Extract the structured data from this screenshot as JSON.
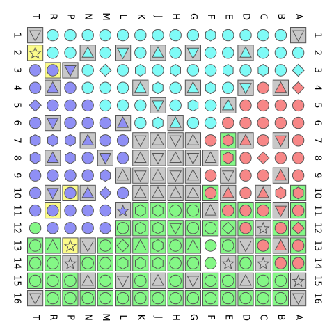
{
  "board": {
    "columns": [
      "T",
      "R",
      "P",
      "N",
      "M",
      "L",
      "K",
      "J",
      "H",
      "G",
      "F",
      "E",
      "D",
      "C",
      "B",
      "A"
    ],
    "rows": [
      "1",
      "2",
      "3",
      "4",
      "5",
      "6",
      "7",
      "8",
      "9",
      "10",
      "11",
      "12",
      "13",
      "14",
      "15",
      "16"
    ],
    "legend": {
      "background": {
        ".": "none",
        "y": "yellow",
        "g": "gray",
        "r": "green"
      },
      "color": {
        "c": "cyan",
        "b": "blue",
        "r": "red",
        "g": "green"
      },
      "shape": {
        "c": "circle",
        "x": "hexagon",
        "d": "diamond",
        "t": "triangle-up",
        "v": "triangle-down",
        "s": "star",
        "n": "none"
      }
    },
    "colors": {
      "cyan": "#7ffbf7",
      "blue": "#8f8ff5",
      "red": "#f78787",
      "green": "#84f786",
      "cell_gray": "#c8c8c8",
      "cell_yellow": "#fbfb8a",
      "cell_green": "#84f786",
      "outline": "#555555"
    },
    "grid": [
      [
        "gnv",
        ".cc",
        ".cc",
        ".cc",
        ".cc",
        ".cc",
        ".cc",
        ".cc",
        ".cc",
        ".cc",
        ".cx",
        ".cc",
        ".cc",
        ".cc",
        ".cc",
        "gnv"
      ],
      [
        "yns",
        ".cc",
        ".cc",
        "gct",
        ".cc",
        "gcv",
        ".cc",
        "gct",
        ".cc",
        "gcv",
        ".cc",
        ".cc",
        "gct",
        ".cc",
        ".cc",
        ".cc"
      ],
      [
        ".bc",
        "ybc",
        "gbv",
        ".cc",
        ".cd",
        ".cc",
        ".cx",
        ".cc",
        ".cx",
        ".cc",
        ".cc",
        ".cx",
        ".cc",
        ".cx",
        ".cc",
        ".cd"
      ],
      [
        ".bc",
        "gbt",
        ".bc",
        ".cc",
        ".cc",
        ".cc",
        "gct",
        ".cx",
        ".cc",
        "gct",
        ".cx",
        ".cc",
        "gcv",
        ".rc",
        "grt",
        ".rd"
      ],
      [
        ".bd",
        ".bc",
        ".bc",
        ".bc",
        ".cc",
        ".cc",
        ".cc",
        "gcv",
        ".cc",
        ".cx",
        ".cc",
        "gct",
        ".rc",
        ".rc",
        ".rc",
        ".rc"
      ],
      [
        ".bc",
        "gbv",
        ".bc",
        ".bc",
        ".bc",
        "gbt",
        ".cc",
        ".cx",
        "gct",
        ".cc",
        ".cc",
        ".rc",
        ".rc",
        ".rc",
        ".rc",
        ".rc"
      ],
      [
        ".bx",
        ".bx",
        ".bx",
        "gbt",
        ".bc",
        ".bc",
        "gnv",
        "gnt",
        "gnv",
        "gnt",
        ".rc",
        "rrx",
        "grt",
        ".rc",
        "grv",
        ".rc"
      ],
      [
        ".bx",
        "gbt",
        ".bx",
        ".bc",
        "gbv",
        ".bc",
        "gnt",
        "gnv",
        "gnt",
        "gnv",
        "gnt",
        "rrx",
        ".rc",
        ".rd",
        ".rc",
        ".rc"
      ],
      [
        ".bc",
        ".bc",
        ".bc",
        ".bc",
        ".bx",
        "gnt",
        "gnv",
        "gnt",
        "gnv",
        "gnt",
        ".rc",
        "gnv",
        ".rc",
        ".rc",
        "grt",
        ".rc"
      ],
      [
        ".bc",
        "gbv",
        "ybc",
        "gbt",
        ".bd",
        ".bc",
        "gnt",
        "gnt",
        "gnt",
        "gnt",
        "rrc",
        "grt",
        ".rc",
        "grt",
        ".rx",
        "rrx"
      ],
      [
        ".bc",
        "ybc",
        ".bc",
        ".bc",
        ".bc",
        "gbs",
        "rgx",
        "rgx",
        "rgc",
        "rgc",
        "gnt",
        "rrc",
        "rrc",
        "rrc",
        "grv",
        "rrc"
      ],
      [
        ".gc",
        ".bc",
        ".bc",
        ".bc",
        ".bc",
        "rgc",
        "rgx",
        "rgx",
        "rgv",
        "rgc",
        "rgc",
        "rgd",
        "rrc",
        "gns",
        "rrc",
        "rrd"
      ],
      [
        "rgc",
        "rgt",
        "yns",
        "gnv",
        "rgc",
        "rgd",
        "rgt",
        "rgx",
        "rgc",
        "rgt",
        ".gc",
        "rgc",
        "gnv",
        "rrc",
        "grt",
        "rrc"
      ],
      [
        "rgc",
        "rgc",
        "gns",
        "rgc",
        "rgc",
        "rgx",
        "rgx",
        "rgx",
        "rgc",
        "rgc",
        ".gc",
        "gns",
        "rgc",
        "gns",
        "rrc",
        "rrc"
      ],
      [
        "rgc",
        "rgc",
        "rgc",
        "gnt",
        "rgc",
        "gnv",
        "rgc",
        "gnt",
        "rgc",
        "gnv",
        "rgc",
        "rgc",
        "gnt",
        "rgc",
        "rgc",
        "gns"
      ],
      [
        "gnv",
        "rgc",
        "rgc",
        "rgc",
        "rgc",
        "rgc",
        "rgc",
        "rgc",
        "rgc",
        "rgc",
        "rgc",
        "rgc",
        "rgc",
        "rgc",
        "rgc",
        "gnv"
      ]
    ]
  }
}
